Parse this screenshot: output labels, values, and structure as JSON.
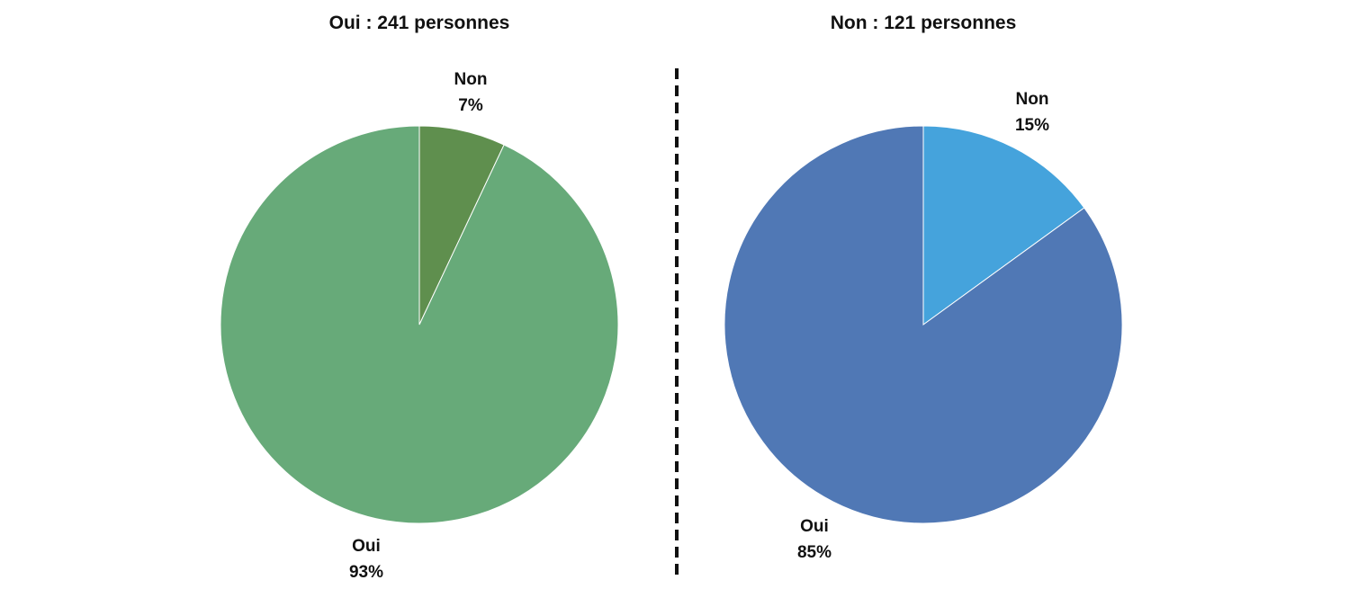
{
  "chart_data": [
    {
      "type": "pie",
      "title": "Oui : 241 personnes",
      "slices": [
        {
          "label": "Non",
          "value": 7,
          "value_label": "7%",
          "color": "#5f8f4e"
        },
        {
          "label": "Oui",
          "value": 93,
          "value_label": "93%",
          "color": "#67aa79"
        }
      ]
    },
    {
      "type": "pie",
      "title": "Non : 121 personnes",
      "slices": [
        {
          "label": "Non",
          "value": 15,
          "value_label": "15%",
          "color": "#45a3dc"
        },
        {
          "label": "Oui",
          "value": 85,
          "value_label": "85%",
          "color": "#5078b5"
        }
      ]
    }
  ],
  "separator": {
    "style": "dashed",
    "color": "#111111"
  }
}
